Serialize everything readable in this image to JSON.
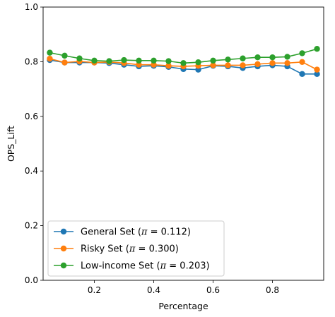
{
  "chart_data": {
    "type": "line",
    "xlabel": "Percentage",
    "ylabel": "OPS_Lift",
    "xlim": [
      0.0275,
      0.9725
    ],
    "ylim": [
      0.0,
      1.0
    ],
    "x_ticks": [
      0.2,
      0.4,
      0.6,
      0.8
    ],
    "y_ticks": [
      0.0,
      0.2,
      0.4,
      0.6,
      0.8,
      1.0
    ],
    "x_tick_labels": [
      "0.2",
      "0.4",
      "0.6",
      "0.8"
    ],
    "y_tick_labels": [
      "0.0",
      "0.2",
      "0.4",
      "0.6",
      "0.8",
      "1.0"
    ],
    "grid": false,
    "legend_position": "lower-left",
    "x": [
      0.05,
      0.1,
      0.15,
      0.2,
      0.25,
      0.3,
      0.35,
      0.4,
      0.45,
      0.5,
      0.55,
      0.6,
      0.65,
      0.7,
      0.75,
      0.8,
      0.85,
      0.9,
      0.95
    ],
    "series": [
      {
        "name": "General Set (π = 0.112)",
        "legend_prefix": "General Set (",
        "legend_suffix": " = 0.112)",
        "color": "#1f77b4",
        "values": [
          0.806,
          0.797,
          0.797,
          0.797,
          0.795,
          0.789,
          0.783,
          0.785,
          0.781,
          0.773,
          0.771,
          0.785,
          0.783,
          0.777,
          0.783,
          0.787,
          0.783,
          0.755,
          0.755
        ]
      },
      {
        "name": "Risky Set (π = 0.300)",
        "legend_prefix": "Risky Set (",
        "legend_suffix": " = 0.300)",
        "color": "#ff7f0e",
        "values": [
          0.811,
          0.797,
          0.801,
          0.797,
          0.799,
          0.795,
          0.789,
          0.789,
          0.785,
          0.783,
          0.785,
          0.787,
          0.787,
          0.787,
          0.791,
          0.795,
          0.795,
          0.799,
          0.771
        ]
      },
      {
        "name": "Low-income Set (π = 0.203)",
        "legend_prefix": "Low-income Set (",
        "legend_suffix": " = 0.203)",
        "color": "#2ca02c",
        "values": [
          0.833,
          0.822,
          0.812,
          0.804,
          0.802,
          0.806,
          0.804,
          0.804,
          0.802,
          0.795,
          0.798,
          0.804,
          0.808,
          0.812,
          0.816,
          0.816,
          0.818,
          0.831,
          0.847
        ]
      }
    ]
  }
}
